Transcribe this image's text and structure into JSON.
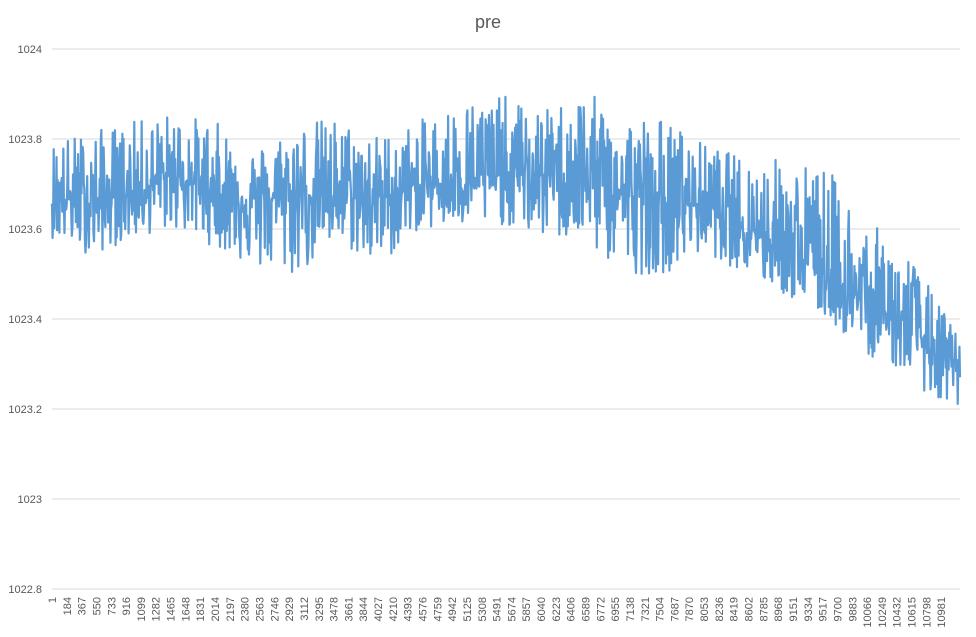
{
  "chart_data": {
    "type": "line",
    "title": "pre",
    "xlabel": "",
    "ylabel": "",
    "ylim": [
      1022.8,
      1024
    ],
    "y_ticks": [
      "1024",
      "1023.8",
      "1023.6",
      "1023.4",
      "1023.2",
      "1023",
      "1022.8"
    ],
    "x_tick_labels": [
      "1",
      "184",
      "367",
      "550",
      "733",
      "916",
      "1099",
      "1282",
      "1465",
      "1648",
      "1831",
      "2014",
      "2197",
      "2380",
      "2563",
      "2746",
      "2929",
      "3112",
      "3295",
      "3478",
      "3661",
      "3844",
      "4027",
      "4210",
      "4393",
      "4576",
      "4759",
      "4942",
      "5125",
      "5308",
      "5491",
      "5674",
      "5857",
      "6040",
      "6223",
      "6406",
      "6589",
      "6772",
      "6955",
      "7138",
      "7321",
      "7504",
      "7687",
      "7870",
      "8053",
      "8236",
      "8419",
      "8602",
      "8785",
      "8968",
      "9151",
      "9334",
      "9517",
      "9700",
      "9883",
      "10066",
      "10249",
      "10432",
      "10615",
      "10798",
      "10981"
    ],
    "x_range": [
      1,
      11137
    ],
    "grid": true,
    "legend": "none",
    "series": [
      {
        "color": "#5B9BD5",
        "trend": {
          "x": [
            1,
            500,
            1000,
            1500,
            2000,
            2500,
            3000,
            3500,
            4000,
            4500,
            5000,
            5500,
            6000,
            6500,
            7000,
            7500,
            8000,
            8500,
            9000,
            9500,
            10000,
            10500,
            11000,
            11137
          ],
          "y": [
            1023.67,
            1023.66,
            1023.68,
            1023.72,
            1023.68,
            1023.66,
            1023.68,
            1023.67,
            1023.67,
            1023.69,
            1023.71,
            1023.72,
            1023.72,
            1023.72,
            1023.68,
            1023.65,
            1023.66,
            1023.61,
            1023.56,
            1023.5,
            1023.43,
            1023.38,
            1023.31,
            1023.27
          ]
        },
        "envelope_high": {
          "x": [
            1,
            500,
            1000,
            1500,
            2000,
            2500,
            3000,
            3500,
            4000,
            4500,
            5000,
            5500,
            6000,
            6500,
            7000,
            7500,
            8000,
            8500,
            9000,
            9500,
            10000,
            10500,
            11000,
            11137
          ],
          "y": [
            1023.8,
            1023.82,
            1023.84,
            1023.86,
            1023.84,
            1023.78,
            1023.84,
            1023.85,
            1023.81,
            1023.84,
            1023.89,
            1023.9,
            1023.86,
            1023.91,
            1023.86,
            1023.85,
            1023.79,
            1023.76,
            1023.76,
            1023.74,
            1023.62,
            1023.55,
            1023.4,
            1023.36
          ]
        },
        "envelope_low": {
          "x": [
            1,
            500,
            1000,
            1500,
            2000,
            2500,
            3000,
            3500,
            4000,
            4500,
            5000,
            5500,
            6000,
            6500,
            7000,
            7500,
            8000,
            8500,
            9000,
            9500,
            10000,
            10500,
            11000,
            11137
          ],
          "y": [
            1023.58,
            1023.54,
            1023.58,
            1023.6,
            1023.56,
            1023.51,
            1023.49,
            1023.57,
            1023.51,
            1023.6,
            1023.6,
            1023.61,
            1023.58,
            1023.57,
            1023.5,
            1023.5,
            1023.55,
            1023.5,
            1023.45,
            1023.4,
            1023.32,
            1023.28,
            1023.18,
            1023.2
          ]
        }
      }
    ]
  }
}
